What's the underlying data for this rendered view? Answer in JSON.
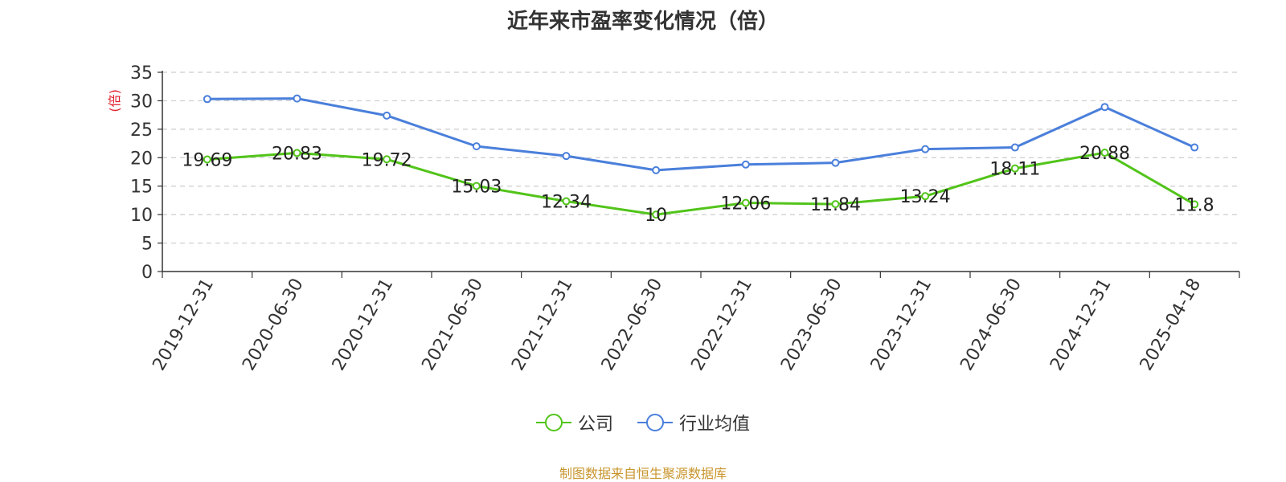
{
  "chart_data": {
    "type": "line",
    "title": "近年来市盈率变化情况（倍）",
    "ylabel": "(倍)",
    "xlabel": "",
    "ylim": [
      0,
      35
    ],
    "yticks": [
      0,
      5,
      10,
      15,
      20,
      25,
      30,
      35
    ],
    "grid": true,
    "legend_position": "bottom",
    "categories": [
      "2019-12-31",
      "2020-06-30",
      "2020-12-31",
      "2021-06-30",
      "2021-12-31",
      "2022-06-30",
      "2022-12-31",
      "2023-06-30",
      "2023-12-31",
      "2024-06-30",
      "2024-12-31",
      "2025-04-18"
    ],
    "series": [
      {
        "name": "公司",
        "color": "#52c41a",
        "show_labels": true,
        "values": [
          19.69,
          20.83,
          19.72,
          15.03,
          12.34,
          10,
          12.06,
          11.84,
          13.24,
          18.11,
          20.88,
          11.8
        ]
      },
      {
        "name": "行业均值",
        "color": "#4a7fdb",
        "show_labels": false,
        "values": [
          30.3,
          30.4,
          27.4,
          22.0,
          20.3,
          17.8,
          18.8,
          19.1,
          21.5,
          21.8,
          28.9,
          21.8
        ]
      }
    ]
  },
  "footer": {
    "source": "制图数据来自恒生聚源数据库"
  },
  "colors": {
    "ylabel": "#e0202a",
    "source": "#c8962e"
  }
}
